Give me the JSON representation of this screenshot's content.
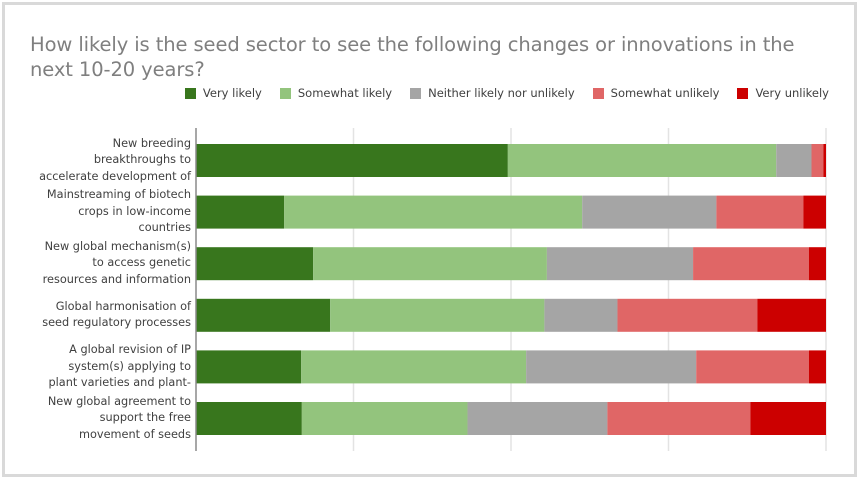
{
  "chart_data": {
    "type": "bar",
    "orientation": "horizontal",
    "stacked": true,
    "title": "How likely is the seed sector to see the following changes or innovations in the next 10-20 years?",
    "xlabel": "",
    "ylabel": "",
    "xlim": [
      0,
      100
    ],
    "grid": true,
    "legend_position": "top-right",
    "categories": [
      "New breeding breakthroughs to accelerate development of",
      "Mainstreaming of biotech crops in low-income countries",
      "New global mechanism(s) to access genetic resources and information",
      "Global harmonisation of seed regulatory processes",
      "A global revision of IP system(s) applying to plant varieties and plant-",
      "New global agreement to support the free movement of seeds"
    ],
    "category_lines": [
      [
        "New breeding",
        "breakthroughs to",
        "accelerate development of"
      ],
      [
        "Mainstreaming of biotech",
        "crops in low-income",
        "countries"
      ],
      [
        "New global mechanism(s)",
        "to access genetic",
        "resources and information"
      ],
      [
        "Global harmonisation of",
        "seed regulatory processes"
      ],
      [
        "A global revision of IP",
        "system(s) applying to",
        "plant varieties and plant-"
      ],
      [
        "New global agreement to",
        "support the free",
        "movement of seeds"
      ]
    ],
    "series": [
      {
        "name": "Very likely",
        "color": "#38761d",
        "values": [
          49.5,
          14.0,
          18.6,
          21.3,
          16.7,
          16.8
        ]
      },
      {
        "name": "Somewhat likely",
        "color": "#93c47d",
        "values": [
          42.6,
          47.3,
          37.1,
          34.0,
          35.7,
          26.3
        ]
      },
      {
        "name": "Neither likely nor unlikely",
        "color": "#a5a5a5",
        "values": [
          5.6,
          21.3,
          23.2,
          11.6,
          27.0,
          22.2
        ]
      },
      {
        "name": "Somewhat unlikely",
        "color": "#e06666",
        "values": [
          1.9,
          13.8,
          18.4,
          22.2,
          17.9,
          22.7
        ]
      },
      {
        "name": "Very unlikely",
        "color": "#cc0000",
        "values": [
          0.4,
          3.6,
          2.7,
          10.9,
          2.7,
          12.0
        ]
      }
    ],
    "gridline_values": [
      25,
      50,
      75,
      100
    ]
  }
}
